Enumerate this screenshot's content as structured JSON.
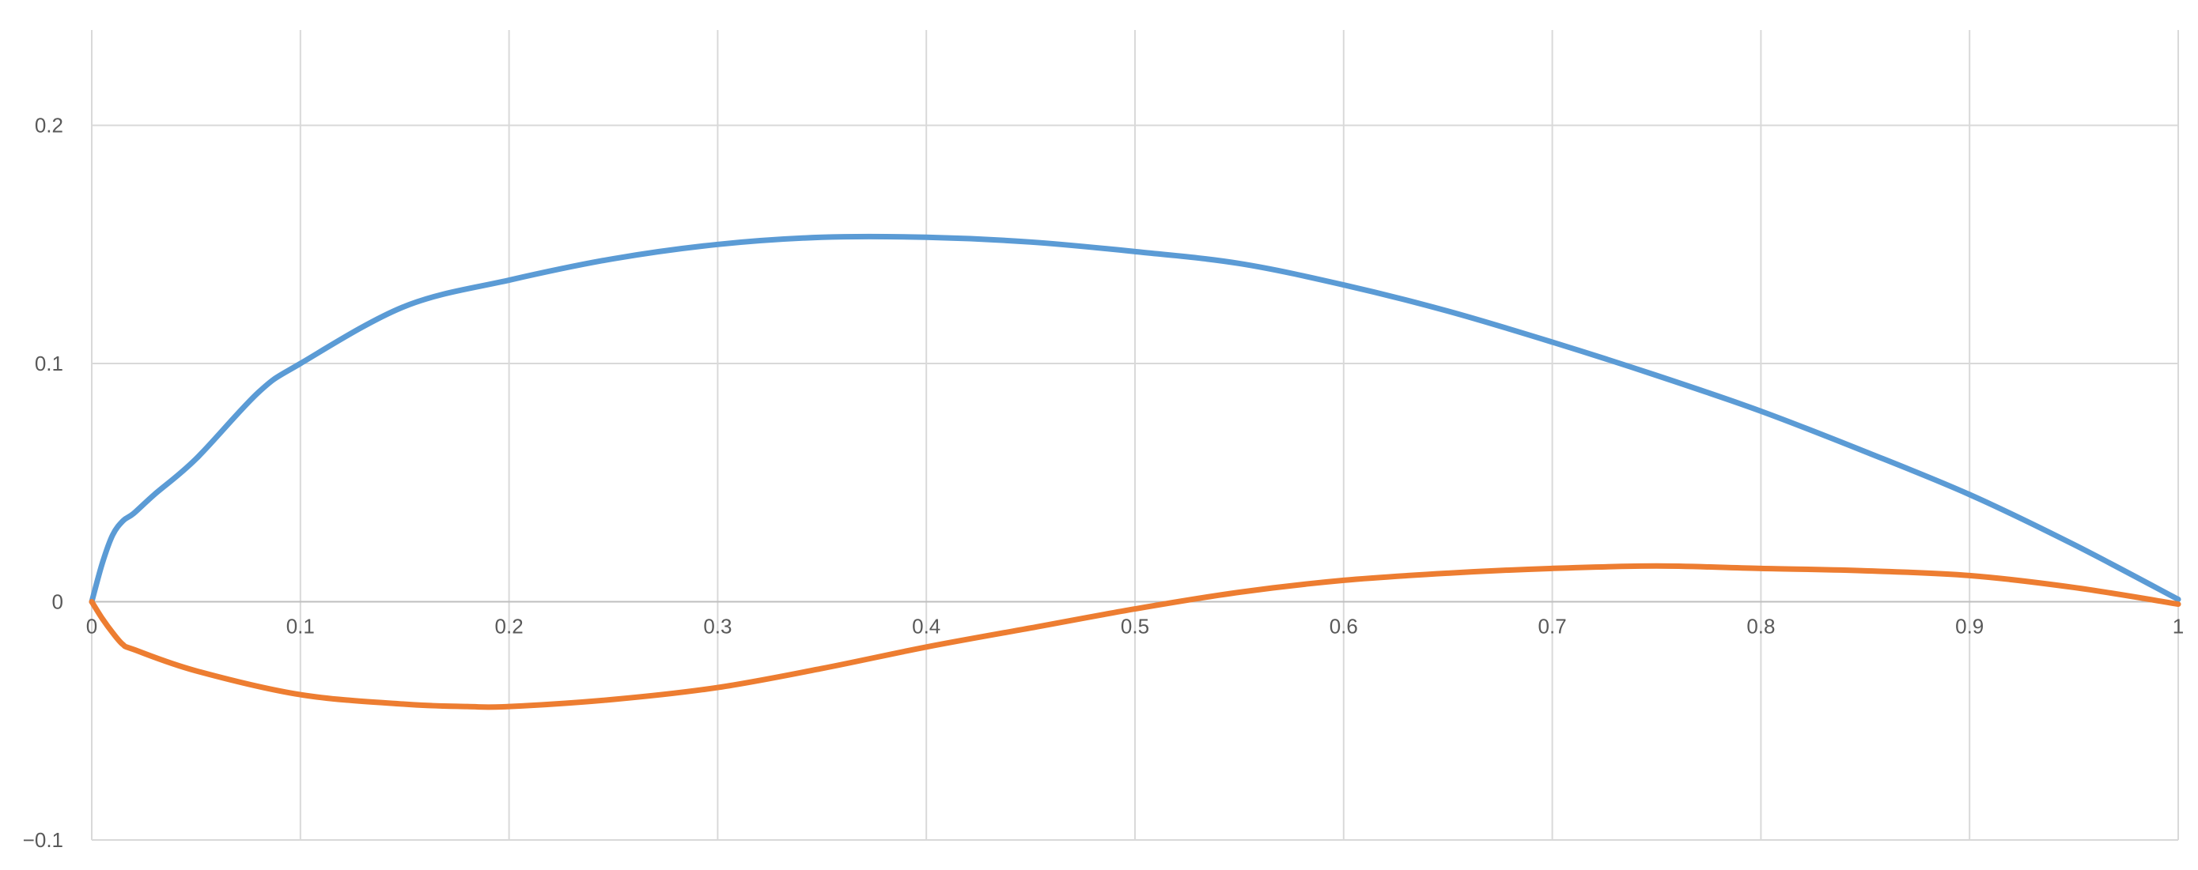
{
  "chart_data": {
    "type": "line",
    "title": "",
    "xlabel": "",
    "ylabel": "",
    "xlim": [
      0,
      1
    ],
    "ylim": [
      -0.1,
      0.24
    ],
    "grid": true,
    "legend": "none",
    "x_ticks": [
      "0",
      "0.1",
      "0.2",
      "0.3",
      "0.4",
      "0.5",
      "0.6",
      "0.7",
      "0.8",
      "0.9",
      "1"
    ],
    "y_ticks": [
      "−0.1",
      "0",
      "0.1",
      "0.2"
    ],
    "series": [
      {
        "color": "#5B9BD5",
        "points": [
          [
            0,
            0
          ],
          [
            0.005,
            0.016
          ],
          [
            0.01,
            0.028
          ],
          [
            0.015,
            0.034
          ],
          [
            0.02,
            0.037
          ],
          [
            0.03,
            0.045
          ],
          [
            0.05,
            0.06
          ],
          [
            0.08,
            0.088
          ],
          [
            0.1,
            0.1
          ],
          [
            0.15,
            0.124
          ],
          [
            0.2,
            0.135
          ],
          [
            0.25,
            0.144
          ],
          [
            0.3,
            0.15
          ],
          [
            0.35,
            0.153
          ],
          [
            0.4,
            0.153
          ],
          [
            0.45,
            0.151
          ],
          [
            0.5,
            0.147
          ],
          [
            0.55,
            0.142
          ],
          [
            0.6,
            0.133
          ],
          [
            0.65,
            0.122
          ],
          [
            0.7,
            0.109
          ],
          [
            0.75,
            0.095
          ],
          [
            0.8,
            0.08
          ],
          [
            0.85,
            0.063
          ],
          [
            0.9,
            0.045
          ],
          [
            0.95,
            0.024
          ],
          [
            1,
            0.001
          ]
        ]
      },
      {
        "color": "#ED7D31",
        "points": [
          [
            0,
            0
          ],
          [
            0.005,
            -0.007
          ],
          [
            0.01,
            -0.013
          ],
          [
            0.015,
            -0.018
          ],
          [
            0.02,
            -0.02
          ],
          [
            0.05,
            -0.029
          ],
          [
            0.1,
            -0.039
          ],
          [
            0.15,
            -0.043
          ],
          [
            0.18,
            -0.044
          ],
          [
            0.2,
            -0.044
          ],
          [
            0.25,
            -0.041
          ],
          [
            0.3,
            -0.036
          ],
          [
            0.35,
            -0.028
          ],
          [
            0.4,
            -0.019
          ],
          [
            0.45,
            -0.011
          ],
          [
            0.5,
            -0.003
          ],
          [
            0.55,
            0.004
          ],
          [
            0.6,
            0.009
          ],
          [
            0.65,
            0.012
          ],
          [
            0.7,
            0.014
          ],
          [
            0.75,
            0.015
          ],
          [
            0.8,
            0.014
          ],
          [
            0.85,
            0.013
          ],
          [
            0.9,
            0.011
          ],
          [
            0.95,
            0.006
          ],
          [
            1,
            -0.001
          ]
        ]
      }
    ]
  }
}
